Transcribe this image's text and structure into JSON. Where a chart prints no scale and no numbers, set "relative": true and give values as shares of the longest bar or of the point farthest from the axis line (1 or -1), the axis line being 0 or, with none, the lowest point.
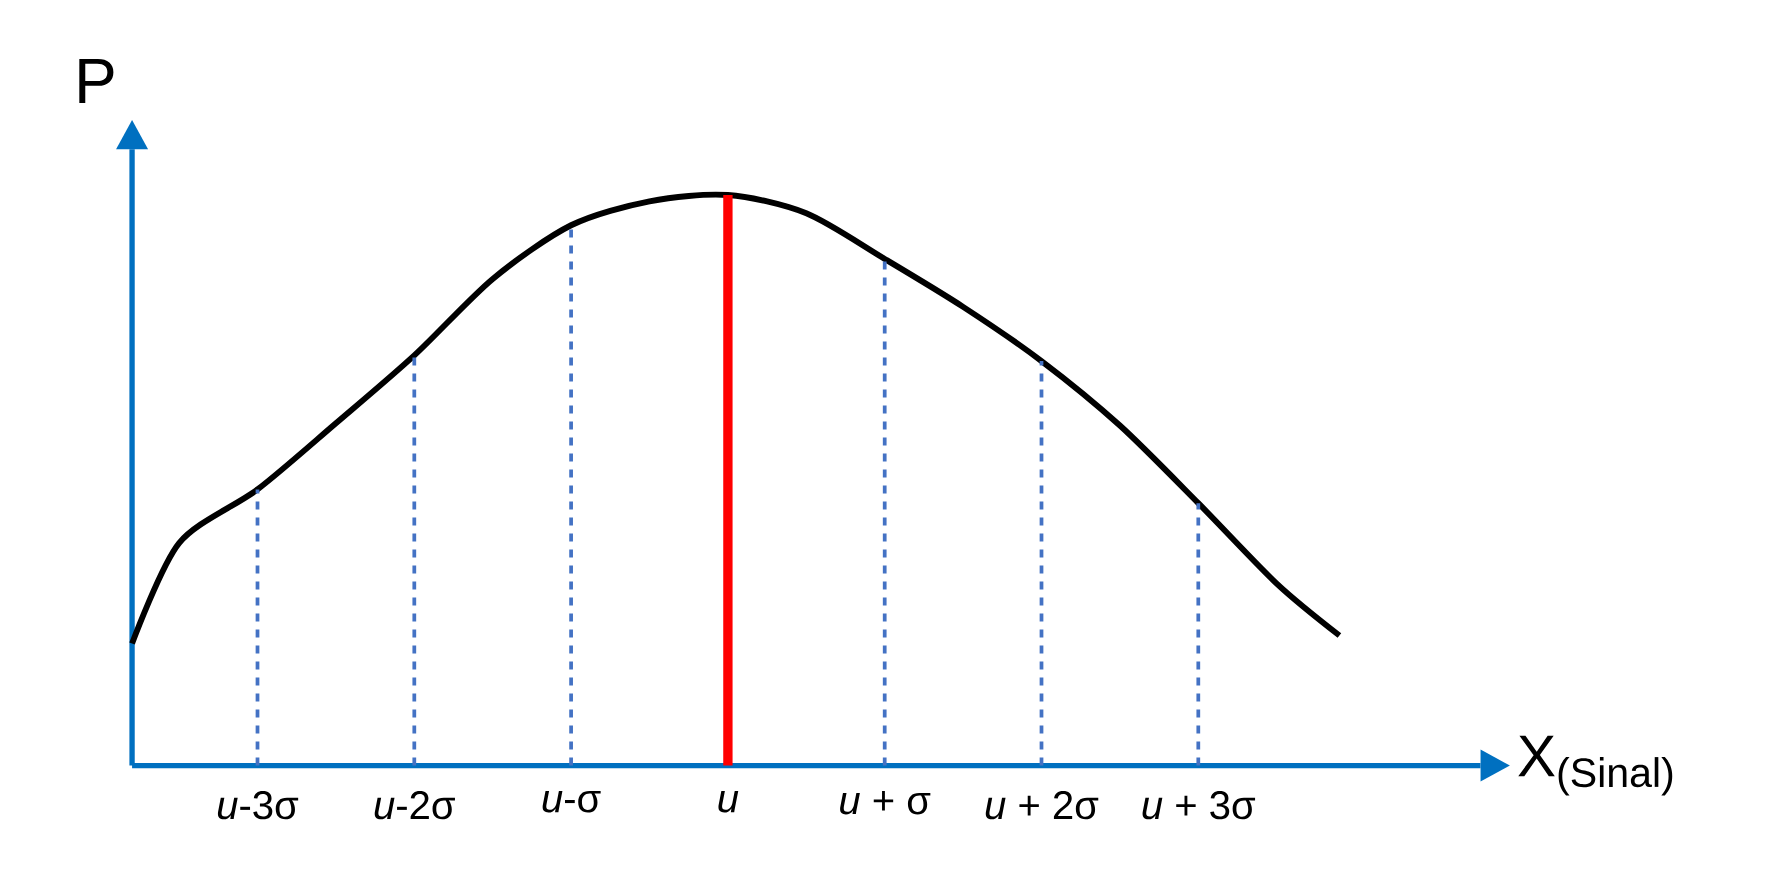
{
  "chart_data": {
    "type": "line",
    "relative": true,
    "xlabel": "X$_{(Sinal)}$",
    "ylabel": "P",
    "xlim": [
      -3.8,
      4.8
    ],
    "xticks": [
      {
        "value": -3,
        "label": "*u*-3σ"
      },
      {
        "value": -2,
        "label": "*u*-2σ"
      },
      {
        "value": -1,
        "label": "*u*-σ"
      },
      {
        "value": 0,
        "label": "*u*"
      },
      {
        "value": 1,
        "label": "*u* + σ"
      },
      {
        "value": 2,
        "label": "*u* + 2σ"
      },
      {
        "value": 3,
        "label": "*u* + 3σ"
      }
    ],
    "x": [
      -3.8,
      -3.5,
      -3,
      -2.5,
      -2,
      -1.5,
      -1,
      -0.5,
      0,
      0.5,
      1,
      1.5,
      2,
      2.5,
      3,
      3.5,
      3.9
    ],
    "series": [
      {
        "color": "#000000",
        "values": [
          0.214,
          0.39,
          0.484,
          0.6,
          0.719,
          0.853,
          0.947,
          0.989,
          1,
          0.968,
          0.888,
          0.804,
          0.709,
          0.596,
          0.46,
          0.319,
          0.228
        ]
      }
    ],
    "ref_lines": [
      {
        "axis": "x",
        "value": -3,
        "color": "#4472c4",
        "line_style": "dashed"
      },
      {
        "axis": "x",
        "value": -2,
        "color": "#4472c4",
        "line_style": "dashed"
      },
      {
        "axis": "x",
        "value": -1,
        "color": "#4472c4",
        "line_style": "dashed"
      },
      {
        "axis": "x",
        "value": 0,
        "color": "#ff0000",
        "line_style": "solid"
      },
      {
        "axis": "x",
        "value": 1,
        "color": "#4472c4",
        "line_style": "dashed"
      },
      {
        "axis": "x",
        "value": 2,
        "color": "#4472c4",
        "line_style": "dashed"
      },
      {
        "axis": "x",
        "value": 3,
        "color": "#4472c4",
        "line_style": "dashed"
      }
    ]
  }
}
